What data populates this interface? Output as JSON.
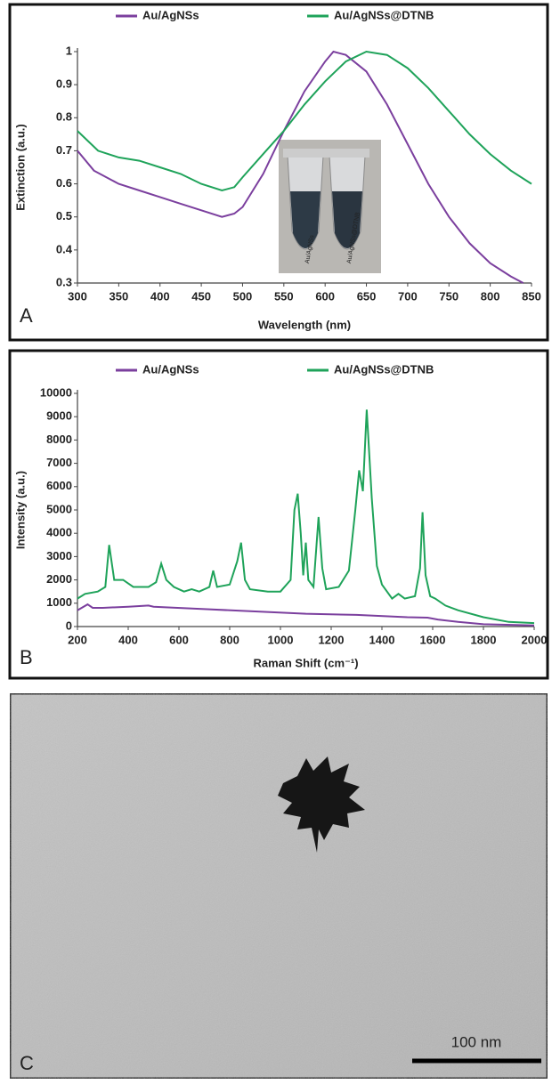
{
  "chart_data": [
    {
      "type": "line",
      "panel_label": "A",
      "xlabel": "Wavelength (nm)",
      "ylabel": "Extinction (a.u.)",
      "xlim": [
        300,
        850
      ],
      "xticks": [
        300,
        350,
        400,
        450,
        500,
        550,
        600,
        650,
        700,
        750,
        800,
        850
      ],
      "ylim": [
        0.3,
        1
      ],
      "yticks": [
        0.3,
        0.4,
        0.5,
        0.6,
        0.7,
        0.8,
        0.9,
        1
      ],
      "inset_labels": [
        "Au/AgNSs",
        "Au/AgNSs@DTNB"
      ],
      "series": [
        {
          "name": "Au/AgNSs",
          "color": "#7b3f9e",
          "x": [
            300,
            320,
            350,
            375,
            400,
            425,
            450,
            475,
            490,
            500,
            525,
            550,
            575,
            600,
            610,
            625,
            650,
            675,
            700,
            725,
            750,
            775,
            800,
            825,
            840
          ],
          "values": [
            0.7,
            0.64,
            0.6,
            0.58,
            0.56,
            0.54,
            0.52,
            0.5,
            0.51,
            0.53,
            0.63,
            0.76,
            0.88,
            0.97,
            1.0,
            0.99,
            0.94,
            0.84,
            0.72,
            0.6,
            0.5,
            0.42,
            0.36,
            0.32,
            0.3
          ]
        },
        {
          "name": "Au/AgNSs@DTNB",
          "color": "#1fa35a",
          "x": [
            300,
            325,
            350,
            375,
            400,
            425,
            450,
            475,
            490,
            500,
            525,
            550,
            575,
            600,
            625,
            650,
            675,
            700,
            725,
            750,
            775,
            800,
            825,
            850
          ],
          "values": [
            0.76,
            0.7,
            0.68,
            0.67,
            0.65,
            0.63,
            0.6,
            0.58,
            0.59,
            0.62,
            0.69,
            0.76,
            0.84,
            0.91,
            0.97,
            1.0,
            0.99,
            0.95,
            0.89,
            0.82,
            0.75,
            0.69,
            0.64,
            0.6
          ]
        }
      ]
    },
    {
      "type": "line",
      "panel_label": "B",
      "xlabel": "Raman Shift (cm⁻¹)",
      "ylabel": "Intensity (a.u.)",
      "xlim": [
        200,
        2000
      ],
      "xticks": [
        200,
        400,
        600,
        800,
        1000,
        1200,
        1400,
        1600,
        1800,
        2000
      ],
      "ylim": [
        0,
        10000
      ],
      "yticks": [
        0,
        1000,
        2000,
        3000,
        4000,
        5000,
        6000,
        7000,
        8000,
        9000,
        10000
      ],
      "series": [
        {
          "name": "Au/AgNSs",
          "color": "#7b3f9e",
          "x": [
            200,
            240,
            260,
            300,
            400,
            480,
            500,
            700,
            900,
            1100,
            1300,
            1500,
            1580,
            1620,
            1700,
            1800,
            2000
          ],
          "values": [
            700,
            950,
            800,
            800,
            850,
            900,
            850,
            750,
            650,
            550,
            500,
            400,
            380,
            300,
            200,
            100,
            50
          ]
        },
        {
          "name": "Au/AgNSs@DTNB",
          "color": "#1fa35a",
          "x": [
            200,
            230,
            280,
            310,
            325,
            345,
            380,
            420,
            480,
            510,
            530,
            550,
            580,
            620,
            650,
            680,
            720,
            735,
            750,
            800,
            830,
            845,
            860,
            880,
            950,
            1000,
            1040,
            1055,
            1068,
            1080,
            1090,
            1100,
            1110,
            1130,
            1150,
            1165,
            1180,
            1230,
            1270,
            1295,
            1310,
            1325,
            1340,
            1360,
            1380,
            1400,
            1440,
            1465,
            1490,
            1530,
            1550,
            1560,
            1572,
            1590,
            1610,
            1650,
            1700,
            1800,
            1900,
            2000
          ],
          "values": [
            1200,
            1400,
            1500,
            1700,
            3500,
            2000,
            2000,
            1700,
            1700,
            1900,
            2700,
            2000,
            1700,
            1500,
            1600,
            1500,
            1700,
            2400,
            1700,
            1800,
            2800,
            3600,
            2000,
            1600,
            1500,
            1500,
            2000,
            5000,
            5700,
            4000,
            2200,
            3600,
            2000,
            1700,
            4700,
            2500,
            1600,
            1700,
            2400,
            5000,
            6700,
            5800,
            9300,
            5500,
            2600,
            1800,
            1200,
            1400,
            1200,
            1300,
            2500,
            4900,
            2200,
            1300,
            1200,
            900,
            700,
            400,
            200,
            150
          ]
        }
      ]
    }
  ],
  "image": {
    "panel_label": "C",
    "scale_bar": "100 nm"
  }
}
